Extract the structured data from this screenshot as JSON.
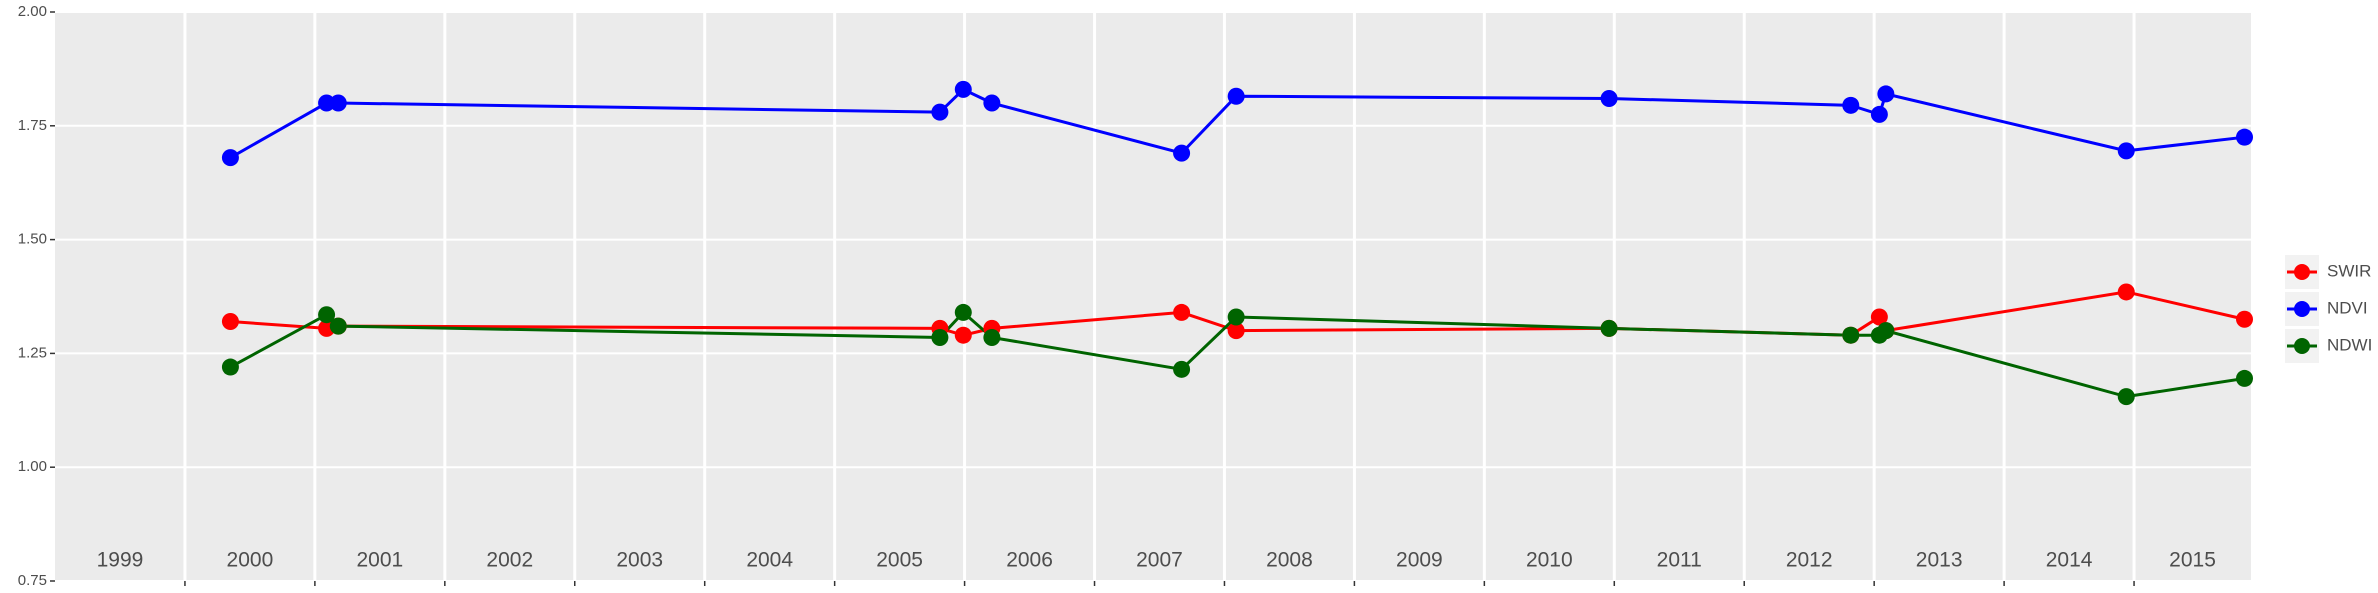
{
  "chart_data": {
    "type": "line",
    "categories": [
      "1999",
      "2000",
      "2001",
      "2002",
      "2003",
      "2004",
      "2005",
      "2006",
      "2007",
      "2008",
      "2009",
      "2010",
      "2011",
      "2012",
      "2013",
      "2014",
      "2015"
    ],
    "x": [
      2000.35,
      2001.09,
      2001.18,
      2005.81,
      2005.99,
      2006.21,
      2007.67,
      2008.09,
      2010.96,
      2012.82,
      2013.04,
      2013.09,
      2014.94,
      2015.85
    ],
    "series": [
      {
        "name": "SWIR",
        "color": "#ff0000",
        "values": [
          1.32,
          1.305,
          1.31,
          1.305,
          1.29,
          1.305,
          1.34,
          1.3,
          1.305,
          1.29,
          1.33,
          1.3,
          1.385,
          1.325
        ]
      },
      {
        "name": "NDVI",
        "color": "#0000ff",
        "values": [
          1.68,
          1.8,
          1.8,
          1.78,
          1.83,
          1.8,
          1.69,
          1.815,
          1.81,
          1.795,
          1.775,
          1.82,
          1.695,
          1.725
        ]
      },
      {
        "name": "NDWI",
        "color": "#006400",
        "values": [
          1.22,
          1.335,
          1.31,
          1.285,
          1.34,
          1.285,
          1.215,
          1.33,
          1.305,
          1.29,
          1.29,
          1.3,
          1.155,
          1.195
        ]
      }
    ],
    "xlim": [
      1999,
      2015.9
    ],
    "xticks": [
      2000,
      2001,
      2002,
      2003,
      2004,
      2005,
      2006,
      2007,
      2008,
      2009,
      2010,
      2011,
      2012,
      2013,
      2014,
      2015
    ],
    "ylim": [
      0.75,
      2.0
    ],
    "yticks": [
      {
        "value": 0.75,
        "label": "0.75"
      },
      {
        "value": 1.0,
        "label": "1.00"
      },
      {
        "value": 1.25,
        "label": "1.25"
      },
      {
        "value": 1.5,
        "label": "1.50"
      },
      {
        "value": 1.75,
        "label": "1.75"
      },
      {
        "value": 2.0,
        "label": "2.00"
      }
    ],
    "grid": true,
    "legend": "right"
  }
}
